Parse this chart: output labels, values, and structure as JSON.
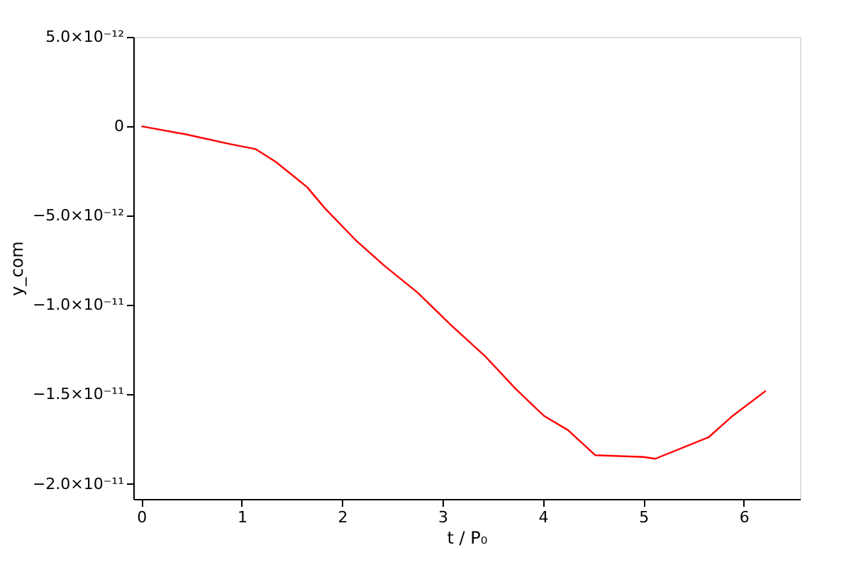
{
  "chart_data": {
    "type": "line",
    "xlabel": "t / P₀",
    "ylabel": "y_com",
    "series": [
      {
        "color": "#ff0000",
        "x": [
          0,
          0.45,
          0.87,
          1.14,
          1.34,
          1.65,
          1.83,
          2.14,
          2.42,
          2.75,
          3.08,
          3.43,
          3.73,
          4.01,
          4.25,
          4.52,
          5.0,
          5.12,
          5.65,
          5.89,
          6.22
        ],
        "values": [
          0,
          -4.6e-13,
          -9.8e-13,
          -1.28e-12,
          -2e-12,
          -3.4e-12,
          -4.6e-12,
          -6.4e-12,
          -7.8e-12,
          -9.3e-12,
          -1.11e-11,
          -1.29e-11,
          -1.47e-11,
          -1.62e-11,
          -1.7e-11,
          -1.84e-11,
          -1.85e-11,
          -1.86e-11,
          -1.74e-11,
          -1.62e-11,
          -1.48e-11
        ]
      }
    ],
    "xlim": [
      -0.08,
      6.56
    ],
    "xticks": [
      0,
      1,
      2,
      3,
      4,
      5,
      6
    ],
    "ylim": [
      -2.085e-11,
      5e-12
    ],
    "yticks": [
      {
        "value": 5e-12,
        "label": "5.0×10⁻¹²"
      },
      {
        "value": 0,
        "label": "0"
      },
      {
        "value": -5e-12,
        "label": "−5.0×10⁻¹²"
      },
      {
        "value": -1e-11,
        "label": "−1.0×10⁻¹¹"
      },
      {
        "value": -1.5e-11,
        "label": "−1.5×10⁻¹¹"
      },
      {
        "value": -2e-11,
        "label": "−2.0×10⁻¹¹"
      }
    ],
    "grid": false,
    "marker": "none",
    "line_style": "solid"
  }
}
